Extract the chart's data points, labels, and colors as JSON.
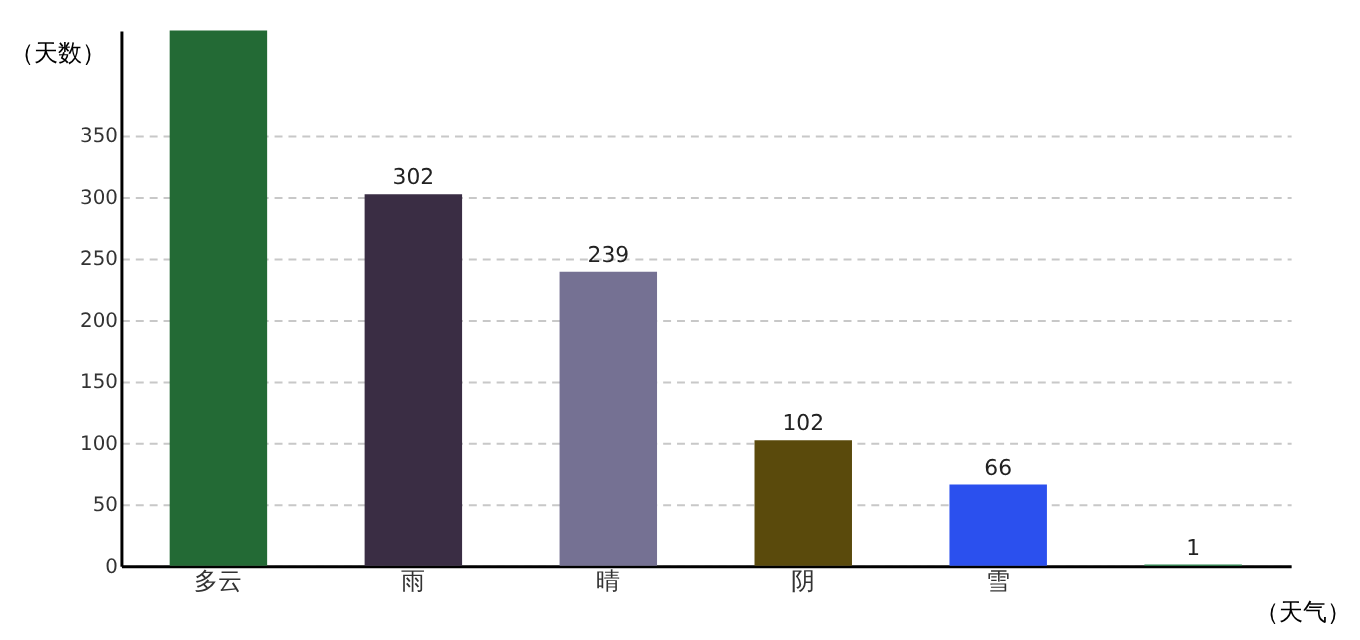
{
  "chart_data": {
    "type": "bar",
    "ylabel": "（天数）",
    "xlabel": "（天气）",
    "categories": [
      "多云",
      "雨",
      "晴",
      "阴",
      "雪",
      null
    ],
    "values": [
      435,
      302,
      239,
      102,
      66,
      1
    ],
    "value_labels": [
      null,
      "302",
      "239",
      "102",
      "66",
      "1"
    ],
    "colors": [
      "#236a35",
      "#3a2d44",
      "#757193",
      "#5a4a0c",
      "#2b50ee",
      "#2d8a50"
    ],
    "ylim": [
      0,
      435
    ],
    "yticks": [
      0,
      50,
      100,
      150,
      200,
      250,
      300,
      350
    ],
    "grid": "y"
  }
}
